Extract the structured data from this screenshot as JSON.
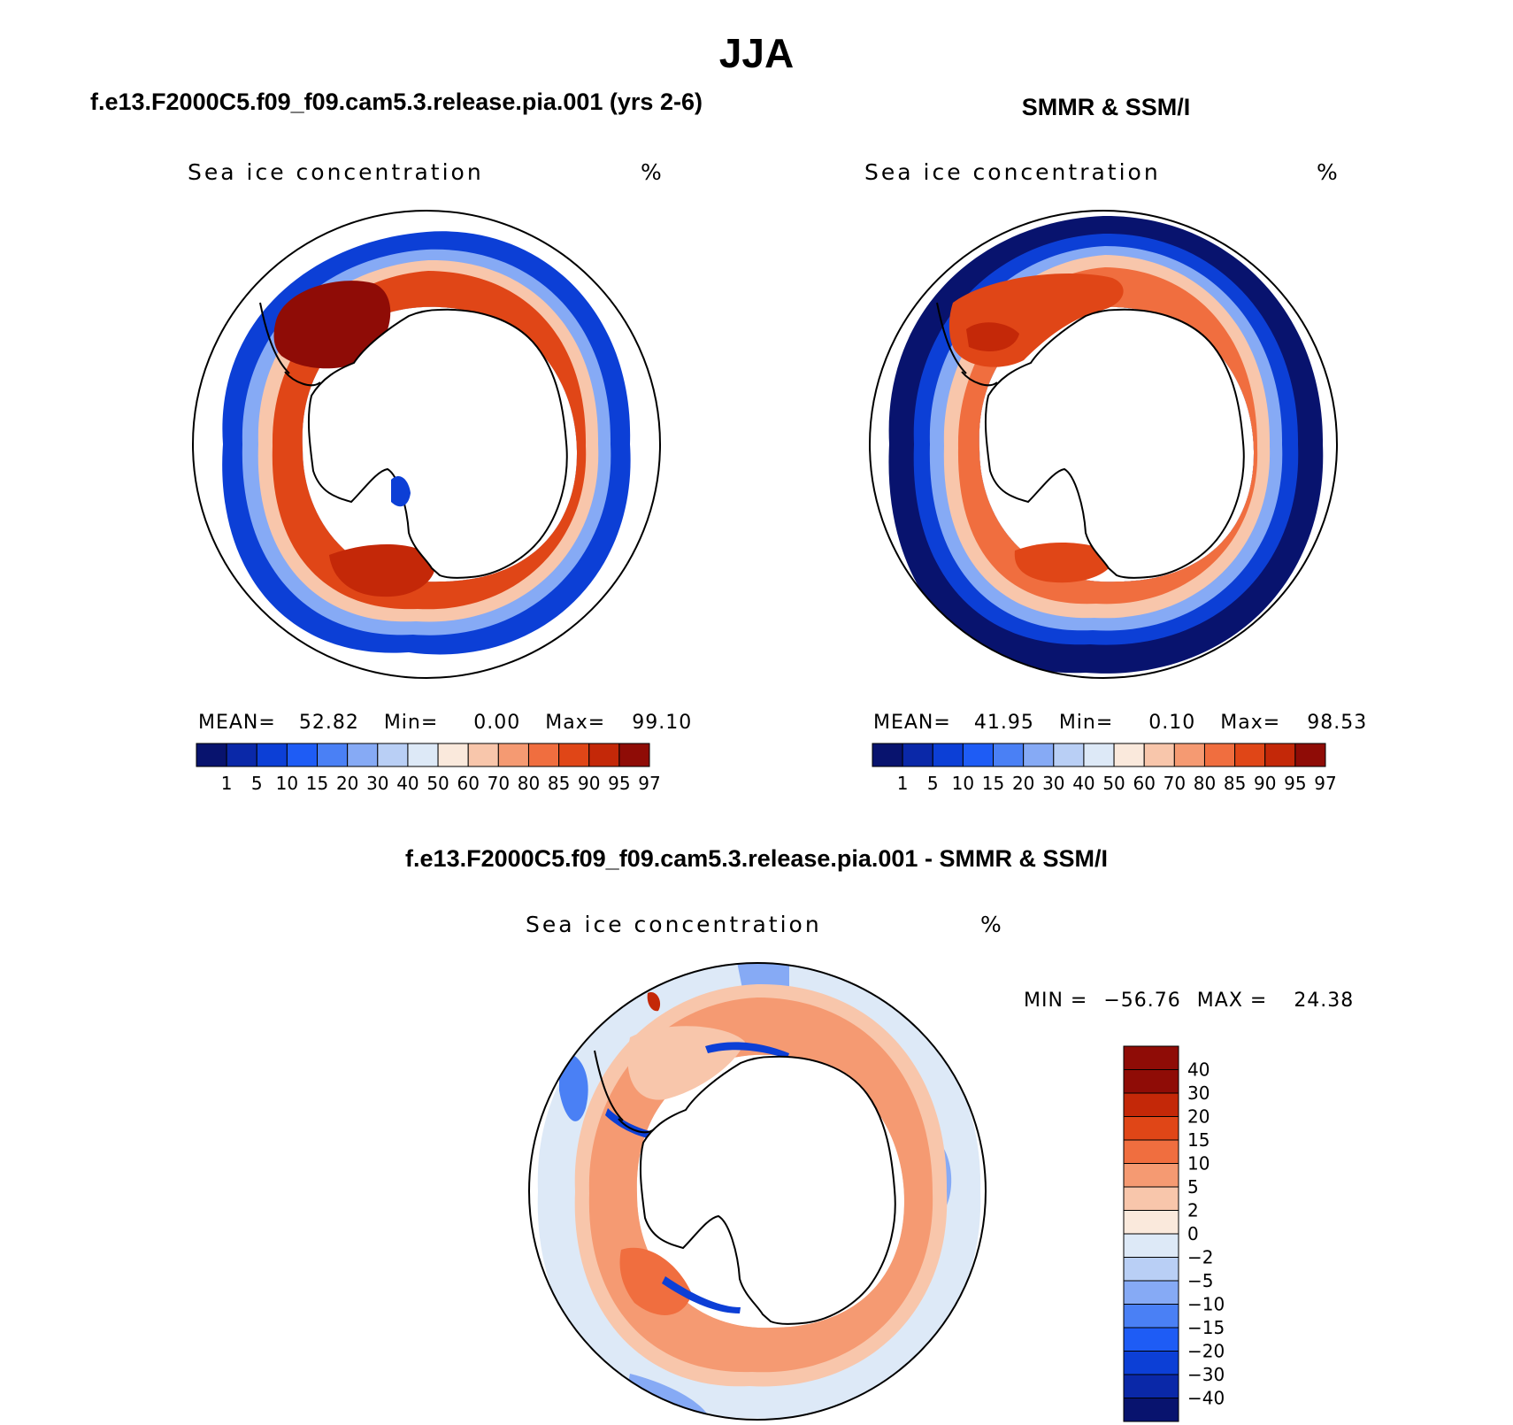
{
  "figure": {
    "title": "JJA",
    "coastline_color": "#000000",
    "colors": {
      "concentration": [
        "#08136e",
        "#0a28a8",
        "#0c3fd6",
        "#1e5cf5",
        "#4a80f5",
        "#86aaf5",
        "#b9cff5",
        "#dde9f7",
        "#fae9dc",
        "#f8c6ab",
        "#f59a72",
        "#f06e3f",
        "#e04617",
        "#c42808",
        "#8f0c06"
      ],
      "difference": [
        "#08136e",
        "#0a28a8",
        "#0c3fd6",
        "#1e5cf5",
        "#4a80f5",
        "#86aaf5",
        "#b9cff5",
        "#dde9f7",
        "#fae9dc",
        "#f8c6ab",
        "#f59a72",
        "#f06e3f",
        "#e04617",
        "#c42808",
        "#8f0c06"
      ]
    }
  },
  "panels": [
    {
      "id": "model",
      "heading": "f.e13.F2000C5.f09_f09.cam5.3.release.pia.001 (yrs 2-6)",
      "variable_label": "Sea ice concentration",
      "units": "%",
      "stats": {
        "mean_label": "MEAN=",
        "mean": "52.82",
        "min_label": "Min=",
        "min": "0.00",
        "max_label": "Max=",
        "max": "99.10"
      },
      "legend_labels": [
        "1",
        "5",
        "10",
        "15",
        "20",
        "30",
        "40",
        "50",
        "60",
        "70",
        "80",
        "85",
        "90",
        "95",
        "97"
      ]
    },
    {
      "id": "obs",
      "heading": "SMMR & SSM/I",
      "variable_label": "Sea ice concentration",
      "units": "%",
      "stats": {
        "mean_label": "MEAN=",
        "mean": "41.95",
        "min_label": "Min=",
        "min": "0.10",
        "max_label": "Max=",
        "max": "98.53"
      },
      "legend_labels": [
        "1",
        "5",
        "10",
        "15",
        "20",
        "30",
        "40",
        "50",
        "60",
        "70",
        "80",
        "85",
        "90",
        "95",
        "97"
      ]
    },
    {
      "id": "diff",
      "heading": "f.e13.F2000C5.f09_f09.cam5.3.release.pia.001 - SMMR & SSM/I",
      "variable_label": "Sea ice concentration",
      "units": "%",
      "stats": {
        "min_label": "MIN =",
        "min": "−56.76",
        "max_label": "MAX =",
        "max": "24.38"
      },
      "legend_labels": [
        "40",
        "30",
        "20",
        "15",
        "10",
        "5",
        "2",
        "0",
        "−2",
        "−5",
        "−10",
        "−15",
        "−20",
        "−30",
        "−40"
      ]
    }
  ]
}
